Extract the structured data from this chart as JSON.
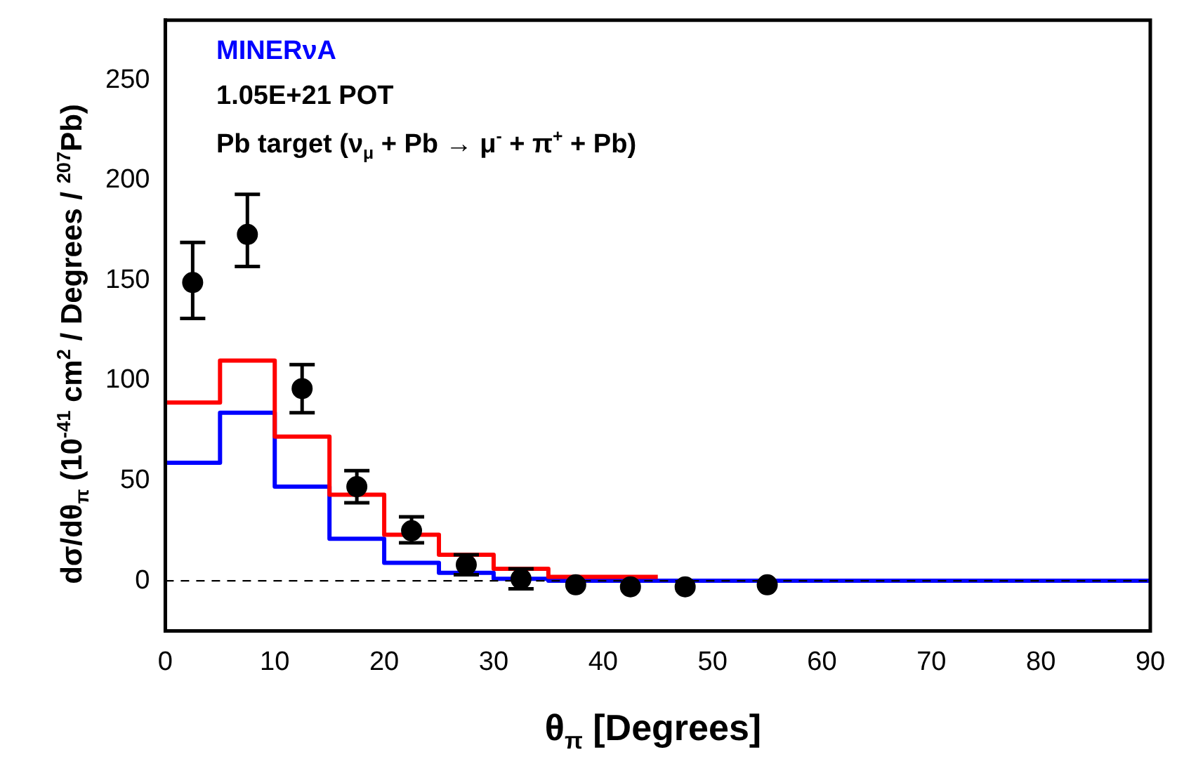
{
  "chart_data": {
    "type": "scatter",
    "xlabel": "θ$_{π}$ [Degrees]",
    "ylabel": "dσ/dθ$_{π}$ (10$^{-41}$ cm$^{2}$ / Degrees / $^{207}$Pb)",
    "annotations": [
      "MINERνA",
      "1.05E+21 POT",
      "Pb target  (ν$_{μ}$ + Pb → μ$^{-}$ + π$^{+}$ + Pb)"
    ],
    "xlim": [
      0,
      90
    ],
    "xticks": [
      0,
      10,
      20,
      30,
      40,
      50,
      60,
      70,
      80,
      90
    ],
    "ylim": [
      -25,
      280
    ],
    "yticks": [
      0,
      50,
      100,
      150,
      200,
      250
    ],
    "grid": false,
    "legend": false,
    "ref_lines": [
      {
        "axis": "y",
        "value": 0,
        "color": "#000000",
        "line_style": "dashed"
      }
    ],
    "series": [
      {
        "type": "step",
        "color": "#ff0000",
        "x": [
          0,
          5,
          10,
          15,
          20,
          25,
          30,
          35,
          40,
          45
        ],
        "values": [
          89,
          110,
          72,
          43,
          23,
          13,
          6,
          2,
          2,
          2
        ]
      },
      {
        "type": "step",
        "color": "#0000ff",
        "x": [
          0,
          5,
          10,
          15,
          20,
          25,
          30,
          35,
          90
        ],
        "values": [
          59,
          84,
          47,
          21,
          9,
          4,
          1,
          0,
          0
        ]
      },
      {
        "marker": "circle",
        "color": "#000000",
        "x": [
          2.5,
          7.5,
          12.5,
          17.5,
          22.5,
          27.5,
          32.5,
          37.5,
          42.5,
          47.5,
          55
        ],
        "values": [
          149,
          173,
          96,
          47,
          25,
          8,
          1,
          -2,
          -3,
          -3,
          -2
        ],
        "errors": [
          [
            131,
            169
          ],
          [
            157,
            193
          ],
          [
            84,
            108
          ],
          [
            39,
            55
          ],
          [
            19,
            32
          ],
          [
            3,
            13
          ],
          [
            -4,
            6
          ],
          null,
          null,
          null,
          null
        ]
      }
    ]
  }
}
